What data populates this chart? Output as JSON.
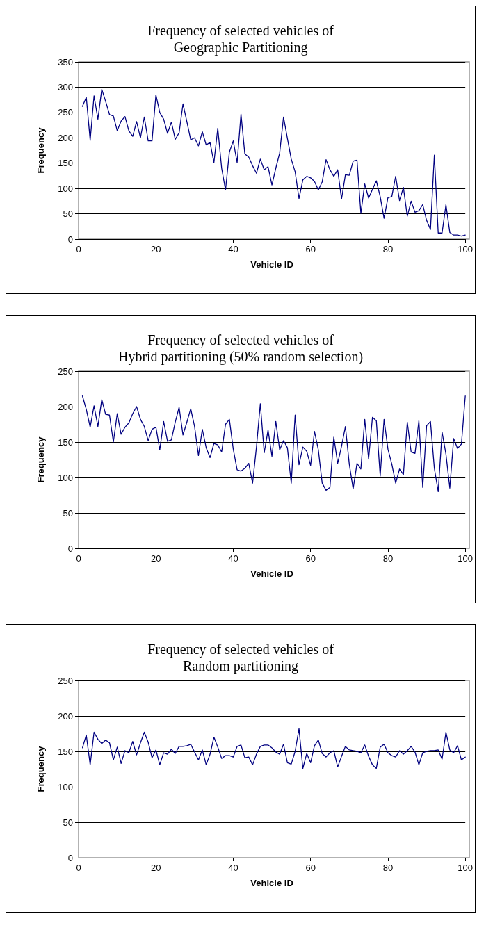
{
  "chart_data": [
    {
      "type": "line",
      "title": "Frequency of selected vehicles of\nGeographic Partitioning",
      "xlabel": "Vehicle ID",
      "ylabel": "Frequency",
      "xlim": [
        0,
        100
      ],
      "xticks": [
        0,
        20,
        40,
        60,
        80,
        100
      ],
      "ylim": [
        0,
        350
      ],
      "yticks": [
        0,
        50,
        100,
        150,
        200,
        250,
        300,
        350
      ],
      "grid": "y",
      "marker": "none",
      "line_style": "solid",
      "x": [
        1,
        2,
        3,
        4,
        5,
        6,
        7,
        8,
        9,
        10,
        11,
        12,
        13,
        14,
        15,
        16,
        17,
        18,
        19,
        20,
        21,
        22,
        23,
        24,
        25,
        26,
        27,
        28,
        29,
        30,
        31,
        32,
        33,
        34,
        35,
        36,
        37,
        38,
        39,
        40,
        41,
        42,
        43,
        44,
        45,
        46,
        47,
        48,
        49,
        50,
        51,
        52,
        53,
        54,
        55,
        56,
        57,
        58,
        59,
        60,
        61,
        62,
        63,
        64,
        65,
        66,
        67,
        68,
        69,
        70,
        71,
        72,
        73,
        74,
        75,
        76,
        77,
        78,
        79,
        80,
        81,
        82,
        83,
        84,
        85,
        86,
        87,
        88,
        89,
        90,
        91,
        92,
        93,
        94,
        95,
        96,
        97,
        98,
        99,
        100
      ],
      "series": [
        {
          "color": "#000080",
          "values": [
            262,
            280,
            195,
            283,
            237,
            296,
            272,
            246,
            243,
            214,
            233,
            242,
            214,
            203,
            232,
            200,
            241,
            194,
            194,
            285,
            250,
            237,
            209,
            231,
            197,
            210,
            267,
            232,
            196,
            200,
            184,
            212,
            186,
            191,
            151,
            219,
            140,
            97,
            172,
            194,
            151,
            247,
            168,
            162,
            145,
            130,
            158,
            137,
            143,
            107,
            140,
            170,
            241,
            199,
            158,
            133,
            80,
            117,
            124,
            121,
            114,
            97,
            113,
            157,
            137,
            124,
            137,
            79,
            127,
            126,
            154,
            156,
            51,
            109,
            81,
            98,
            115,
            84,
            41,
            82,
            84,
            124,
            76,
            102,
            45,
            75,
            53,
            56,
            68,
            37,
            19,
            166,
            12,
            12,
            68,
            13,
            8,
            8,
            6,
            8
          ]
        }
      ]
    },
    {
      "type": "line",
      "title": "Frequency of selected vehicles of\nHybrid partitioning (50% random selection)",
      "xlabel": "Vehicle ID",
      "ylabel": "Frequency",
      "xlim": [
        0,
        100
      ],
      "xticks": [
        0,
        20,
        40,
        60,
        80,
        100
      ],
      "ylim": [
        0,
        250
      ],
      "yticks": [
        0,
        50,
        100,
        150,
        200,
        250
      ],
      "grid": "y",
      "marker": "none",
      "line_style": "solid",
      "x": [
        1,
        2,
        3,
        4,
        5,
        6,
        7,
        8,
        9,
        10,
        11,
        12,
        13,
        14,
        15,
        16,
        17,
        18,
        19,
        20,
        21,
        22,
        23,
        24,
        25,
        26,
        27,
        28,
        29,
        30,
        31,
        32,
        33,
        34,
        35,
        36,
        37,
        38,
        39,
        40,
        41,
        42,
        43,
        44,
        45,
        46,
        47,
        48,
        49,
        50,
        51,
        52,
        53,
        54,
        55,
        56,
        57,
        58,
        59,
        60,
        61,
        62,
        63,
        64,
        65,
        66,
        67,
        68,
        69,
        70,
        71,
        72,
        73,
        74,
        75,
        76,
        77,
        78,
        79,
        80,
        81,
        82,
        83,
        84,
        85,
        86,
        87,
        88,
        89,
        90,
        91,
        92,
        93,
        94,
        95,
        96,
        97,
        98,
        99,
        100
      ],
      "series": [
        {
          "color": "#000080",
          "values": [
            215,
            196,
            171,
            201,
            172,
            210,
            189,
            188,
            150,
            190,
            161,
            171,
            177,
            190,
            200,
            182,
            172,
            152,
            168,
            171,
            139,
            179,
            151,
            153,
            178,
            199,
            160,
            178,
            197,
            172,
            131,
            168,
            142,
            128,
            148,
            146,
            136,
            175,
            182,
            140,
            111,
            109,
            113,
            120,
            92,
            143,
            204,
            135,
            167,
            130,
            179,
            139,
            152,
            142,
            92,
            188,
            118,
            143,
            137,
            117,
            165,
            139,
            92,
            82,
            86,
            157,
            120,
            144,
            172,
            119,
            84,
            120,
            112,
            182,
            126,
            185,
            180,
            102,
            182,
            140,
            119,
            92,
            112,
            104,
            178,
            136,
            134,
            180,
            86,
            173,
            179,
            113,
            80,
            164,
            133,
            85,
            155,
            141,
            147,
            215
          ]
        }
      ]
    },
    {
      "type": "line",
      "title": "Frequency of selected vehicles of\nRandom partitioning",
      "xlabel": "Vehicle ID",
      "ylabel": "Frequency",
      "xlim": [
        0,
        100
      ],
      "xticks": [
        0,
        20,
        40,
        60,
        80,
        100
      ],
      "ylim": [
        0,
        250
      ],
      "yticks": [
        0,
        50,
        100,
        150,
        200,
        250
      ],
      "grid": "y",
      "marker": "none",
      "line_style": "solid",
      "x": [
        1,
        2,
        3,
        4,
        5,
        6,
        7,
        8,
        9,
        10,
        11,
        12,
        13,
        14,
        15,
        16,
        17,
        18,
        19,
        20,
        21,
        22,
        23,
        24,
        25,
        26,
        27,
        28,
        29,
        30,
        31,
        32,
        33,
        34,
        35,
        36,
        37,
        38,
        39,
        40,
        41,
        42,
        43,
        44,
        45,
        46,
        47,
        48,
        49,
        50,
        51,
        52,
        53,
        54,
        55,
        56,
        57,
        58,
        59,
        60,
        61,
        62,
        63,
        64,
        65,
        66,
        67,
        68,
        69,
        70,
        71,
        72,
        73,
        74,
        75,
        76,
        77,
        78,
        79,
        80,
        81,
        82,
        83,
        84,
        85,
        86,
        87,
        88,
        89,
        90,
        91,
        92,
        93,
        94,
        95,
        96,
        97,
        98,
        99,
        100
      ],
      "series": [
        {
          "color": "#000080",
          "values": [
            155,
            173,
            131,
            177,
            167,
            161,
            166,
            162,
            138,
            156,
            133,
            151,
            148,
            164,
            145,
            162,
            177,
            163,
            141,
            152,
            131,
            148,
            146,
            153,
            147,
            157,
            157,
            158,
            160,
            149,
            138,
            152,
            131,
            146,
            170,
            156,
            140,
            144,
            144,
            142,
            157,
            159,
            141,
            142,
            131,
            146,
            157,
            159,
            159,
            155,
            149,
            146,
            160,
            134,
            132,
            150,
            182,
            126,
            147,
            134,
            158,
            166,
            147,
            142,
            148,
            151,
            128,
            143,
            157,
            152,
            151,
            150,
            148,
            159,
            143,
            131,
            126,
            156,
            160,
            148,
            144,
            142,
            151,
            146,
            151,
            157,
            149,
            131,
            148,
            150,
            151,
            151,
            152,
            139,
            177,
            152,
            148,
            158,
            138,
            142
          ]
        }
      ]
    }
  ]
}
